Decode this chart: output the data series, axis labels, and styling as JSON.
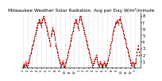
{
  "title": "Milwaukee Weather Solar Radiation  Avg per Day W/m²/minute",
  "title_fontsize": 4.2,
  "bg_color": "#ffffff",
  "grid_color": "#b0b0b0",
  "dot_color_red": "#ff0000",
  "dot_color_black": "#000000",
  "ylim": [
    0,
    8.5
  ],
  "yticks": [
    1,
    2,
    3,
    4,
    5,
    6,
    7,
    8
  ],
  "ytick_fontsize": 3.5,
  "xtick_fontsize": 2.8,
  "red_series": [
    0.4,
    0.3,
    0.5,
    0.6,
    0.4,
    0.8,
    1.0,
    0.7,
    0.5,
    0.3,
    0.6,
    0.8,
    0.9,
    1.2,
    1.5,
    1.8,
    2.1,
    2.4,
    2.7,
    3.0,
    3.3,
    3.6,
    3.9,
    4.2,
    4.5,
    4.8,
    5.1,
    5.4,
    5.7,
    6.0,
    6.3,
    6.5,
    6.8,
    7.0,
    7.2,
    7.5,
    7.3,
    7.0,
    6.8,
    6.5,
    7.0,
    7.2,
    7.5,
    7.8,
    8.0,
    7.8,
    7.5,
    7.2,
    7.0,
    6.8,
    6.5,
    6.2,
    5.8,
    5.5,
    5.2,
    4.8,
    4.5,
    4.2,
    3.8,
    3.5,
    5.0,
    5.3,
    5.6,
    5.9,
    6.2,
    5.8,
    5.5,
    5.2,
    4.8,
    4.5,
    3.8,
    3.5,
    3.2,
    2.8,
    2.5,
    2.2,
    1.8,
    1.5,
    1.2,
    0.9,
    0.6,
    0.4,
    0.5,
    0.7,
    0.9,
    1.1,
    0.8,
    0.6,
    0.4,
    0.3,
    0.5,
    0.7,
    0.9,
    1.2,
    1.5,
    1.8,
    2.2,
    2.5,
    2.8,
    3.2,
    3.5,
    3.8,
    4.2,
    4.5,
    4.8,
    5.2,
    5.5,
    5.8,
    6.2,
    6.5,
    6.8,
    7.0,
    7.2,
    7.5,
    7.3,
    7.1,
    6.9,
    6.6,
    6.3,
    6.0,
    7.2,
    7.5,
    7.8,
    8.0,
    7.8,
    7.5,
    7.2,
    6.9,
    6.6,
    6.3,
    6.0,
    5.7,
    5.4,
    5.1,
    4.8,
    4.5,
    4.2,
    3.9,
    3.6,
    3.3,
    3.0,
    2.7,
    2.4,
    2.1,
    1.8,
    1.5,
    1.2,
    0.9,
    0.6,
    0.4,
    0.6,
    0.8,
    1.0,
    1.2,
    1.4,
    1.6,
    1.8,
    2.0,
    1.6,
    1.2,
    0.9,
    0.7,
    0.5,
    0.4,
    0.6,
    0.8,
    1.0,
    0.7,
    0.5,
    0.4,
    0.3,
    0.5,
    0.6,
    0.8,
    1.0,
    0.8,
    0.6,
    0.5,
    0.4,
    0.6,
    0.8,
    1.0,
    1.3,
    1.6,
    2.0,
    2.4,
    2.8,
    3.2,
    3.6,
    4.0,
    4.4,
    4.8,
    5.2,
    5.5,
    5.8,
    6.1,
    6.4,
    6.6,
    6.9,
    7.1,
    7.0,
    7.2,
    7.4,
    7.2,
    7.0,
    6.8,
    7.5,
    7.8,
    7.5,
    7.2,
    7.0,
    6.7,
    6.4,
    6.1,
    5.8,
    5.5,
    5.2,
    4.9,
    4.6,
    4.3,
    4.0,
    3.7,
    3.4,
    3.1,
    2.8,
    2.5,
    2.2,
    1.9,
    1.6,
    1.3,
    1.0,
    0.8,
    0.6,
    0.5,
    0.7,
    0.9,
    0.7,
    0.5,
    0.4,
    0.6,
    0.8,
    1.0,
    1.5,
    2.0,
    2.5,
    3.0,
    3.5,
    3.0,
    2.5,
    2.0
  ],
  "black_series": [
    0.2,
    0.15,
    0.3,
    0.4,
    0.2,
    0.5,
    0.7,
    0.4,
    0.3,
    0.15,
    0.4,
    0.6,
    0.7,
    1.0,
    1.3,
    1.6,
    1.9,
    2.2,
    2.5,
    2.8,
    3.1,
    3.4,
    3.7,
    4.0,
    4.3,
    4.6,
    4.9,
    5.2,
    5.5,
    5.8,
    6.1,
    6.3,
    6.6,
    6.8,
    7.0,
    7.3,
    7.1,
    6.8,
    6.6,
    6.3,
    6.8,
    7.0,
    7.3,
    7.6,
    7.8,
    7.6,
    7.3,
    7.0,
    6.8,
    6.6,
    6.3,
    6.0,
    5.6,
    5.3,
    5.0,
    4.6,
    4.3,
    4.0,
    3.6,
    3.3,
    4.8,
    5.1,
    5.4,
    5.7,
    6.0,
    5.6,
    5.3,
    5.0,
    4.6,
    4.3,
    3.6,
    3.3,
    3.0,
    2.6,
    2.3,
    2.0,
    1.6,
    1.3,
    1.0,
    0.7,
    0.4,
    0.2,
    0.3,
    0.5,
    0.7,
    0.9,
    0.6,
    0.4,
    0.2,
    0.15,
    0.3,
    0.5,
    0.7,
    1.0,
    1.3,
    1.6,
    2.0,
    2.3,
    2.6,
    3.0,
    3.3,
    3.6,
    4.0,
    4.3,
    4.6,
    5.0,
    5.3,
    5.6,
    6.0,
    6.3,
    6.6,
    6.8,
    7.0,
    7.3,
    7.1,
    6.9,
    6.7,
    6.4,
    6.1,
    5.8,
    7.0,
    7.3,
    7.6,
    7.8,
    7.6,
    7.3,
    7.0,
    6.7,
    6.4,
    6.1,
    5.8,
    5.5,
    5.2,
    4.9,
    4.6,
    4.3,
    4.0,
    3.7,
    3.4,
    3.1,
    2.8,
    2.5,
    2.2,
    1.9,
    1.6,
    1.3,
    1.0,
    0.7,
    0.4,
    0.2,
    0.4,
    0.6,
    0.8,
    1.0,
    1.2,
    1.4,
    1.6,
    1.8,
    1.4,
    1.0,
    0.7,
    0.5,
    0.3,
    0.2,
    0.4,
    0.6,
    0.8,
    0.5,
    0.3,
    0.2,
    0.15,
    0.3,
    0.4,
    0.6,
    0.8,
    0.6,
    0.4,
    0.3,
    0.2,
    0.4,
    0.6,
    0.8,
    1.1,
    1.4,
    1.8,
    2.2,
    2.6,
    3.0,
    3.4,
    3.8,
    4.2,
    4.6,
    5.0,
    5.3,
    5.6,
    5.9,
    6.2,
    6.4,
    6.7,
    6.9,
    6.8,
    7.0,
    7.2,
    7.0,
    6.8,
    6.6,
    7.3,
    7.6,
    7.3,
    7.0,
    6.8,
    6.5,
    6.2,
    5.9,
    5.6,
    5.3,
    5.0,
    4.7,
    4.4,
    4.1,
    3.8,
    3.5,
    3.2,
    2.9,
    2.6,
    2.3,
    2.0,
    1.7,
    1.4,
    1.1,
    0.8,
    0.6,
    0.4,
    0.3,
    0.5,
    0.7,
    0.5,
    0.3,
    0.2,
    0.4,
    0.6,
    0.8,
    1.3,
    1.8,
    2.3,
    2.8,
    3.3,
    2.8,
    2.3,
    1.8
  ],
  "n_xticks": 25,
  "month_boundaries_x": [
    0,
    10,
    20,
    30,
    40,
    50,
    60,
    70,
    80,
    90,
    100,
    110,
    120,
    130,
    140,
    150,
    160,
    170,
    180,
    190,
    200,
    210,
    220,
    230,
    240
  ],
  "xtick_labels": [
    "1",
    "2",
    "3",
    "4",
    "5",
    "6",
    "7",
    "8",
    "9",
    "10",
    "11",
    "12",
    "1",
    "2",
    "3",
    "4",
    "5",
    "6",
    "7",
    "8",
    "9",
    "10",
    "11",
    "12",
    "1"
  ]
}
